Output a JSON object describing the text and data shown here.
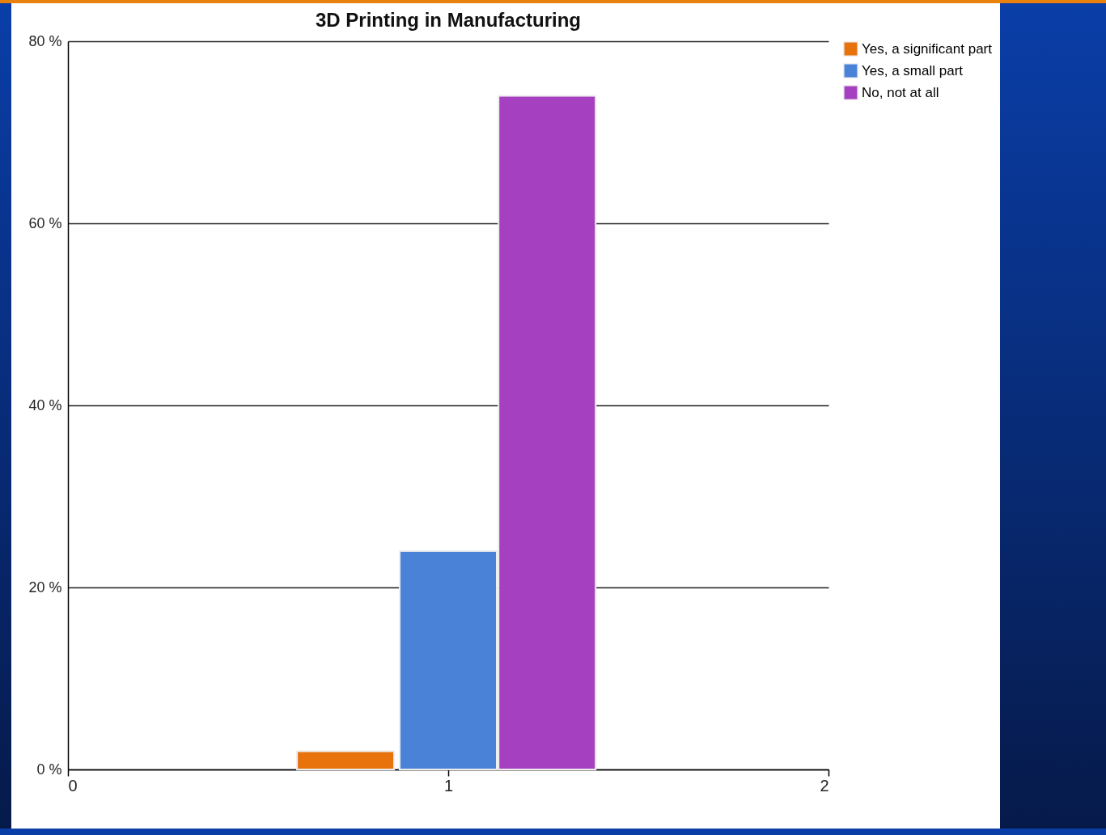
{
  "chart_data": {
    "type": "bar",
    "title": "3D Printing in Manufacturing",
    "xlim": [
      0,
      2
    ],
    "xticks": [
      0,
      1,
      2
    ],
    "ylim": [
      0,
      80
    ],
    "yticks": [
      {
        "value": 0,
        "label": "0 %"
      },
      {
        "value": 20,
        "label": "20 %"
      },
      {
        "value": 40,
        "label": "40 %"
      },
      {
        "value": 60,
        "label": "60 %"
      },
      {
        "value": 80,
        "label": "80 %"
      }
    ],
    "grid": "y",
    "legend": "right",
    "series": [
      {
        "name": "Yes, a significant part",
        "color": "#e8720c",
        "x": [
          0.73
        ],
        "values": [
          2
        ]
      },
      {
        "name": "Yes, a small part",
        "color": "#4a82d8",
        "x": [
          1
        ],
        "values": [
          24
        ]
      },
      {
        "name": "No, not at all",
        "color": "#a540c0",
        "x": [
          1.26
        ],
        "values": [
          74
        ]
      }
    ]
  }
}
